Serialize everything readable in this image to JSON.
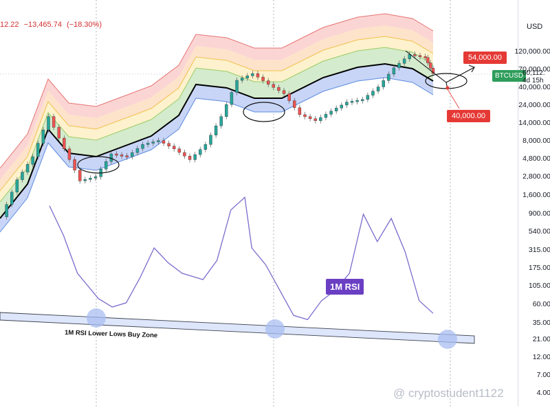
{
  "header": {
    "price_fragment": "12.22",
    "change": "−13,465.74",
    "change_pct": "(−18.30%)"
  },
  "axis": {
    "unit": "USD",
    "ticks": [
      "120,000.00",
      "70,000.00",
      "40,000.00",
      "24,000.00",
      "14,000.00",
      "8,000.00",
      "4,800.00",
      "2,800.00",
      "1,600.00",
      "900.00",
      "540.00",
      "315.00",
      "175.00",
      "105.00",
      "60.00",
      "35.00",
      "21.00",
      "12.00",
      "7.00",
      "4.00"
    ]
  },
  "tags": {
    "target_high": "54,000.00",
    "target_low": "40,000.00",
    "symbol": "BTCUSD",
    "last_price": "60,112.",
    "countdown": "4d 15h"
  },
  "annotations": {
    "rsi_label": "1M RSI",
    "trendline_label": "1M RSI Lower Lows Buy Zone"
  },
  "watermark": "@ cryptostudent1122",
  "colors": {
    "rsi_line": "#7b6bcc",
    "candle_up": "#26a69a",
    "candle_down": "#ef5350",
    "support_line": "#000000",
    "band_blue": "#c5d3f5",
    "band_green": "#cfe9c8",
    "band_yellow": "#fdf1c8",
    "band_orange": "#fde0c4",
    "band_red": "#fbd0cf",
    "buy_zone_marker": "#a8bdf0"
  },
  "chart_data": {
    "type": "line",
    "title": "",
    "panels": [
      {
        "name": "price",
        "scale": "log",
        "series": [
          {
            "name": "BTCUSD",
            "x": [
              0,
              4,
              8,
              12,
              16,
              20,
              24,
              28,
              32,
              36,
              40,
              44,
              48,
              52,
              56,
              60,
              64,
              68,
              72,
              76,
              80,
              84,
              88,
              92,
              96,
              100,
              104,
              108,
              110
            ],
            "y": [
              1300,
              3500,
              6500,
              19000,
              8000,
              3400,
              3800,
              7000,
              6500,
              9000,
              10000,
              8000,
              6000,
              9000,
              19000,
              50000,
              60000,
              45000,
              35000,
              20000,
              17000,
              22000,
              28000,
              30000,
              42000,
              70000,
              100000,
              92000,
              60112
            ]
          }
        ]
      },
      {
        "name": "1M RSI",
        "series": [
          {
            "name": "1M RSI",
            "x": [
              0,
              4,
              8,
              12,
              14,
              18,
              22,
              26,
              30,
              34,
              38,
              44,
              48,
              52,
              56,
              58,
              62,
              66,
              70,
              74,
              78,
              82,
              86,
              90,
              94,
              98,
              102,
              106,
              110
            ],
            "y": [
              92,
              78,
              60,
              52,
              48,
              44,
              46,
              58,
              72,
              65,
              60,
              57,
              66,
              90,
              96,
              72,
              64,
              52,
              40,
              38,
              47,
              52,
              60,
              88,
              75,
              86,
              70,
              47,
              41
            ]
          }
        ]
      }
    ]
  }
}
